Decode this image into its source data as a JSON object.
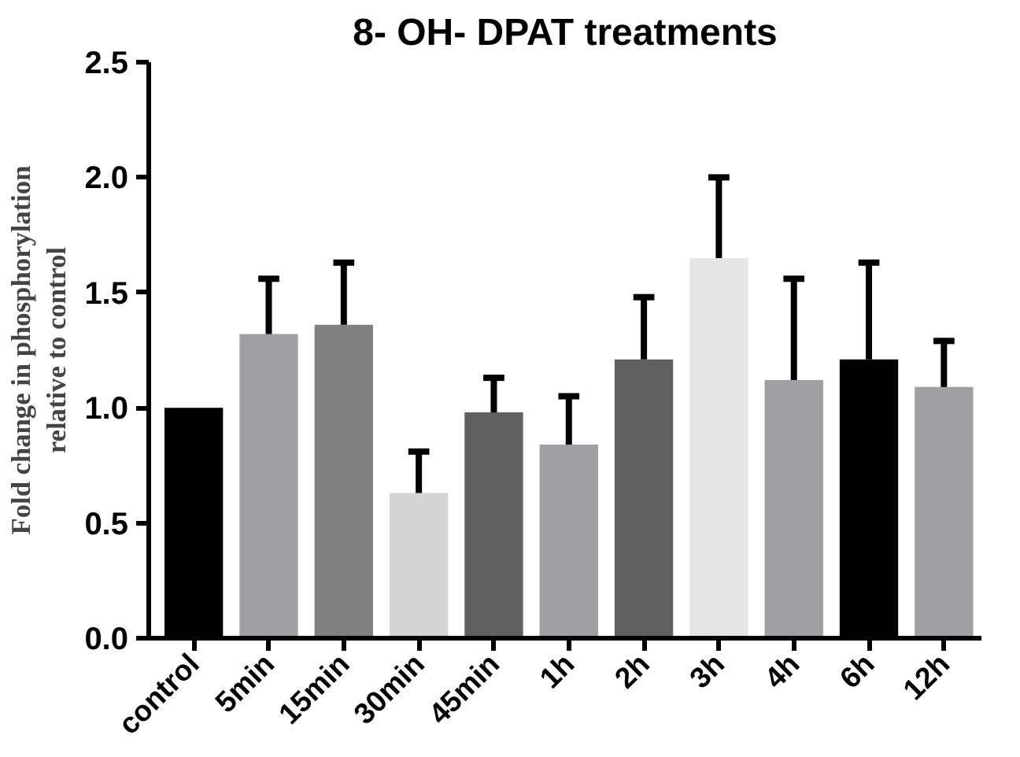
{
  "chart_data": {
    "type": "bar",
    "title": "8- OH- DPAT treatments",
    "ylabel": "Fold change in phosphorylation\nrelative to control",
    "categories": [
      "control",
      "5min",
      "15min",
      "30min",
      "45min",
      "1h",
      "2h",
      "3h",
      "4h",
      "6h",
      "12h"
    ],
    "values": [
      1.0,
      1.32,
      1.36,
      0.63,
      0.98,
      0.84,
      1.21,
      1.65,
      1.12,
      1.21,
      1.09
    ],
    "errors": [
      null,
      [
        1.32,
        1.56
      ],
      [
        1.36,
        1.63
      ],
      [
        0.63,
        0.81
      ],
      [
        0.98,
        1.13
      ],
      [
        0.84,
        1.05
      ],
      [
        1.21,
        1.48
      ],
      [
        1.65,
        2.0
      ],
      [
        1.12,
        1.56
      ],
      [
        1.21,
        1.63
      ],
      [
        1.09,
        1.29
      ]
    ],
    "colors": [
      "#000000",
      "#a0a0a4",
      "#808080",
      "#d4d4d4",
      "#606060",
      "#a0a0a4",
      "#606060",
      "#e6e6e6",
      "#a0a0a4",
      "#000000",
      "#a0a0a4"
    ],
    "ylim": [
      0,
      2.5
    ],
    "yticks": [
      {
        "value": 0,
        "label": "0.0"
      },
      {
        "value": 0.5,
        "label": "0.5"
      },
      {
        "value": 1,
        "label": "1.0"
      },
      {
        "value": 1.5,
        "label": "1.5"
      },
      {
        "value": 2,
        "label": "2.0"
      },
      {
        "value": 2.5,
        "label": "2.5"
      }
    ],
    "grid": false
  }
}
